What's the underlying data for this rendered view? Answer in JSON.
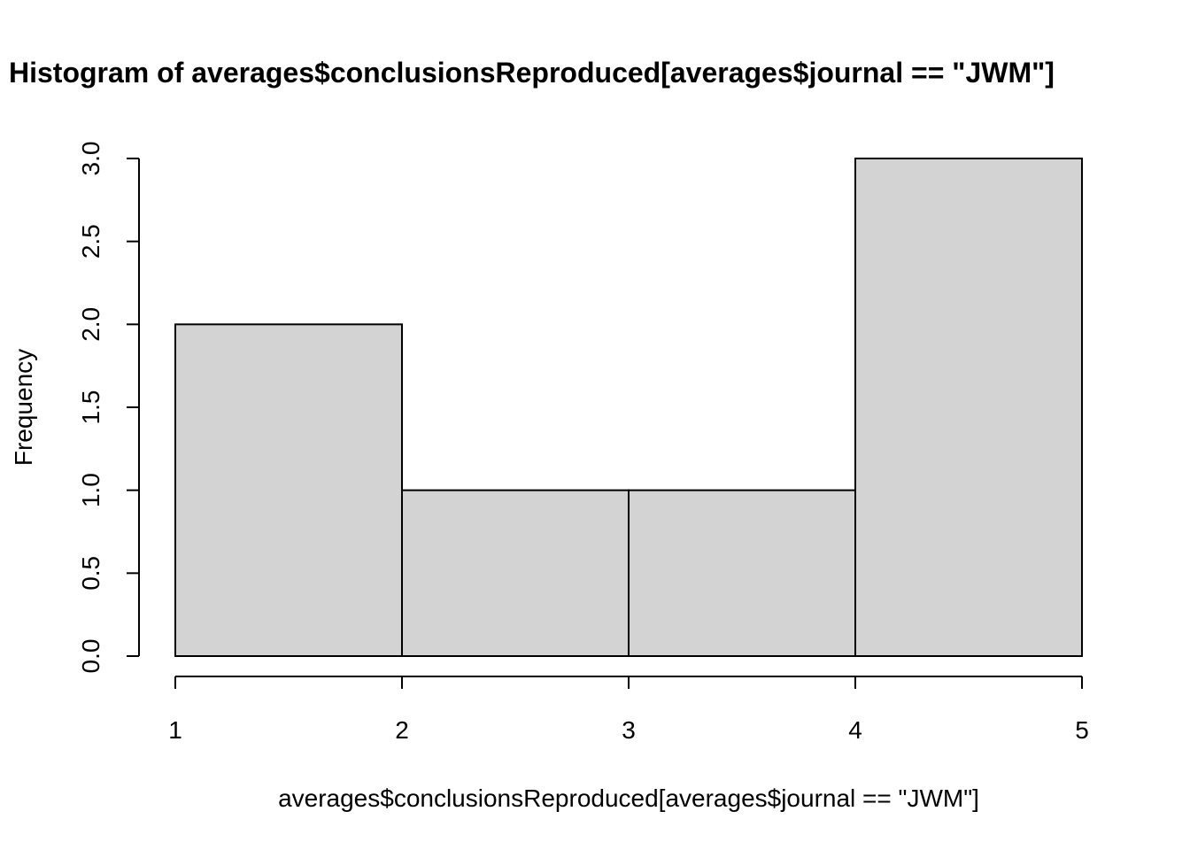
{
  "chart_data": {
    "type": "bar",
    "title": "Histogram of averages$conclusionsReproduced[averages$journal == \"JWM\"]",
    "xlabel": "averages$conclusionsReproduced[averages$journal == \"JWM\"]",
    "ylabel": "Frequency",
    "bins": [
      {
        "from": 1,
        "to": 2,
        "count": 2
      },
      {
        "from": 2,
        "to": 3,
        "count": 1
      },
      {
        "from": 3,
        "to": 4,
        "count": 1
      },
      {
        "from": 4,
        "to": 5,
        "count": 3
      }
    ],
    "xlim": [
      1,
      5
    ],
    "ylim": [
      0,
      3
    ],
    "xticks": [
      "1",
      "2",
      "3",
      "4",
      "5"
    ],
    "yticks": [
      "0.0",
      "0.5",
      "1.0",
      "1.5",
      "2.0",
      "2.5",
      "3.0"
    ],
    "bar_color": "#d3d3d3",
    "border_color": "#000000",
    "grid": false,
    "legend": "none"
  }
}
